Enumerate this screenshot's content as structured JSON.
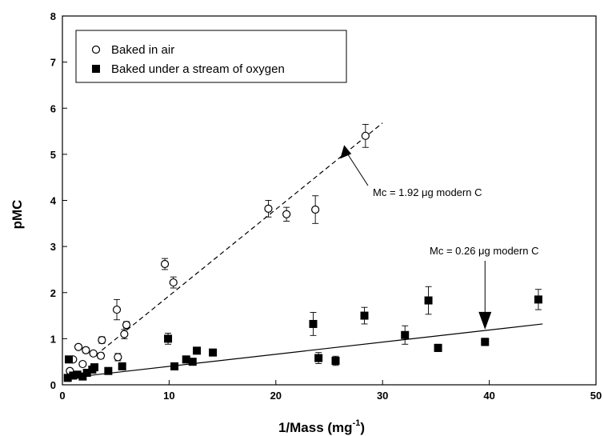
{
  "chart_data": {
    "type": "scatter",
    "xlabel": "1/Mass (mg",
    "xlabel_sup": "-1",
    "xlabel_close": ")",
    "ylabel": "pMC",
    "xlim": [
      0,
      50
    ],
    "ylim": [
      0,
      8
    ],
    "x_ticks": [
      "0",
      "10",
      "20",
      "30",
      "40",
      "50"
    ],
    "y_ticks": [
      "0",
      "1",
      "2",
      "3",
      "4",
      "5",
      "6",
      "7",
      "8"
    ],
    "grid": false,
    "legend_position": "top-left",
    "series": [
      {
        "name": "Baked in air",
        "marker": "open-circle",
        "color": "#000000",
        "points": [
          {
            "x": 0.7,
            "y": 0.3,
            "err": 0.05
          },
          {
            "x": 1.0,
            "y": 0.55,
            "err": 0.05
          },
          {
            "x": 1.5,
            "y": 0.82,
            "err": 0.05
          },
          {
            "x": 1.9,
            "y": 0.45,
            "err": 0.05
          },
          {
            "x": 2.2,
            "y": 0.75,
            "err": 0.06
          },
          {
            "x": 2.9,
            "y": 0.68,
            "err": 0.05
          },
          {
            "x": 3.6,
            "y": 0.63,
            "err": 0.06
          },
          {
            "x": 3.7,
            "y": 0.97,
            "err": 0.07
          },
          {
            "x": 5.1,
            "y": 1.63,
            "err": 0.22
          },
          {
            "x": 5.2,
            "y": 0.6,
            "err": 0.08
          },
          {
            "x": 5.8,
            "y": 1.1,
            "err": 0.1
          },
          {
            "x": 6.0,
            "y": 1.3,
            "err": 0.07
          },
          {
            "x": 9.6,
            "y": 2.62,
            "err": 0.12
          },
          {
            "x": 10.4,
            "y": 2.22,
            "err": 0.12
          },
          {
            "x": 19.3,
            "y": 3.82,
            "err": 0.18
          },
          {
            "x": 21.0,
            "y": 3.7,
            "err": 0.15
          },
          {
            "x": 23.7,
            "y": 3.8,
            "err": 0.3
          },
          {
            "x": 28.4,
            "y": 5.4,
            "err": 0.25
          }
        ]
      },
      {
        "name": "Baked under a stream of oxygen",
        "marker": "filled-square",
        "color": "#000000",
        "points": [
          {
            "x": 0.5,
            "y": 0.15,
            "err": 0.03
          },
          {
            "x": 0.6,
            "y": 0.55,
            "err": 0.05
          },
          {
            "x": 1.0,
            "y": 0.2,
            "err": 0.03
          },
          {
            "x": 1.4,
            "y": 0.22,
            "err": 0.03
          },
          {
            "x": 1.9,
            "y": 0.18,
            "err": 0.03
          },
          {
            "x": 2.3,
            "y": 0.26,
            "err": 0.03
          },
          {
            "x": 2.8,
            "y": 0.33,
            "err": 0.04
          },
          {
            "x": 3.0,
            "y": 0.38,
            "err": 0.04
          },
          {
            "x": 4.3,
            "y": 0.3,
            "err": 0.04
          },
          {
            "x": 5.6,
            "y": 0.4,
            "err": 0.05
          },
          {
            "x": 9.9,
            "y": 1.0,
            "err": 0.12
          },
          {
            "x": 10.5,
            "y": 0.4,
            "err": 0.05
          },
          {
            "x": 11.6,
            "y": 0.55,
            "err": 0.06
          },
          {
            "x": 12.2,
            "y": 0.5,
            "err": 0.05
          },
          {
            "x": 12.6,
            "y": 0.74,
            "err": 0.06
          },
          {
            "x": 14.1,
            "y": 0.7,
            "err": 0.06
          },
          {
            "x": 23.5,
            "y": 1.32,
            "err": 0.25
          },
          {
            "x": 24.0,
            "y": 0.58,
            "err": 0.12
          },
          {
            "x": 25.6,
            "y": 0.52,
            "err": 0.1
          },
          {
            "x": 28.3,
            "y": 1.5,
            "err": 0.18
          },
          {
            "x": 32.1,
            "y": 1.08,
            "err": 0.2
          },
          {
            "x": 34.3,
            "y": 1.83,
            "err": 0.3
          },
          {
            "x": 35.2,
            "y": 0.8,
            "err": 0.08
          },
          {
            "x": 39.6,
            "y": 0.93,
            "err": 0.08
          },
          {
            "x": 44.6,
            "y": 1.85,
            "err": 0.22
          }
        ]
      }
    ],
    "fit_lines": [
      {
        "series": "Baked in air",
        "style": "dashed",
        "x": [
          3.7,
          30.0
        ],
        "y": [
          0.75,
          5.68
        ]
      },
      {
        "series": "Baked under a stream of oxygen",
        "style": "solid",
        "x": [
          0.5,
          45.0
        ],
        "y": [
          0.15,
          1.32
        ]
      }
    ],
    "annotations": [
      {
        "text": "Mc = 1.92  μg modern C",
        "arrow_to": {
          "x": 26.4,
          "y": 5.2
        }
      },
      {
        "text": "Mc = 0.26  μg modern C",
        "arrow_to": {
          "x": 39.6,
          "y": 1.2
        }
      }
    ]
  }
}
